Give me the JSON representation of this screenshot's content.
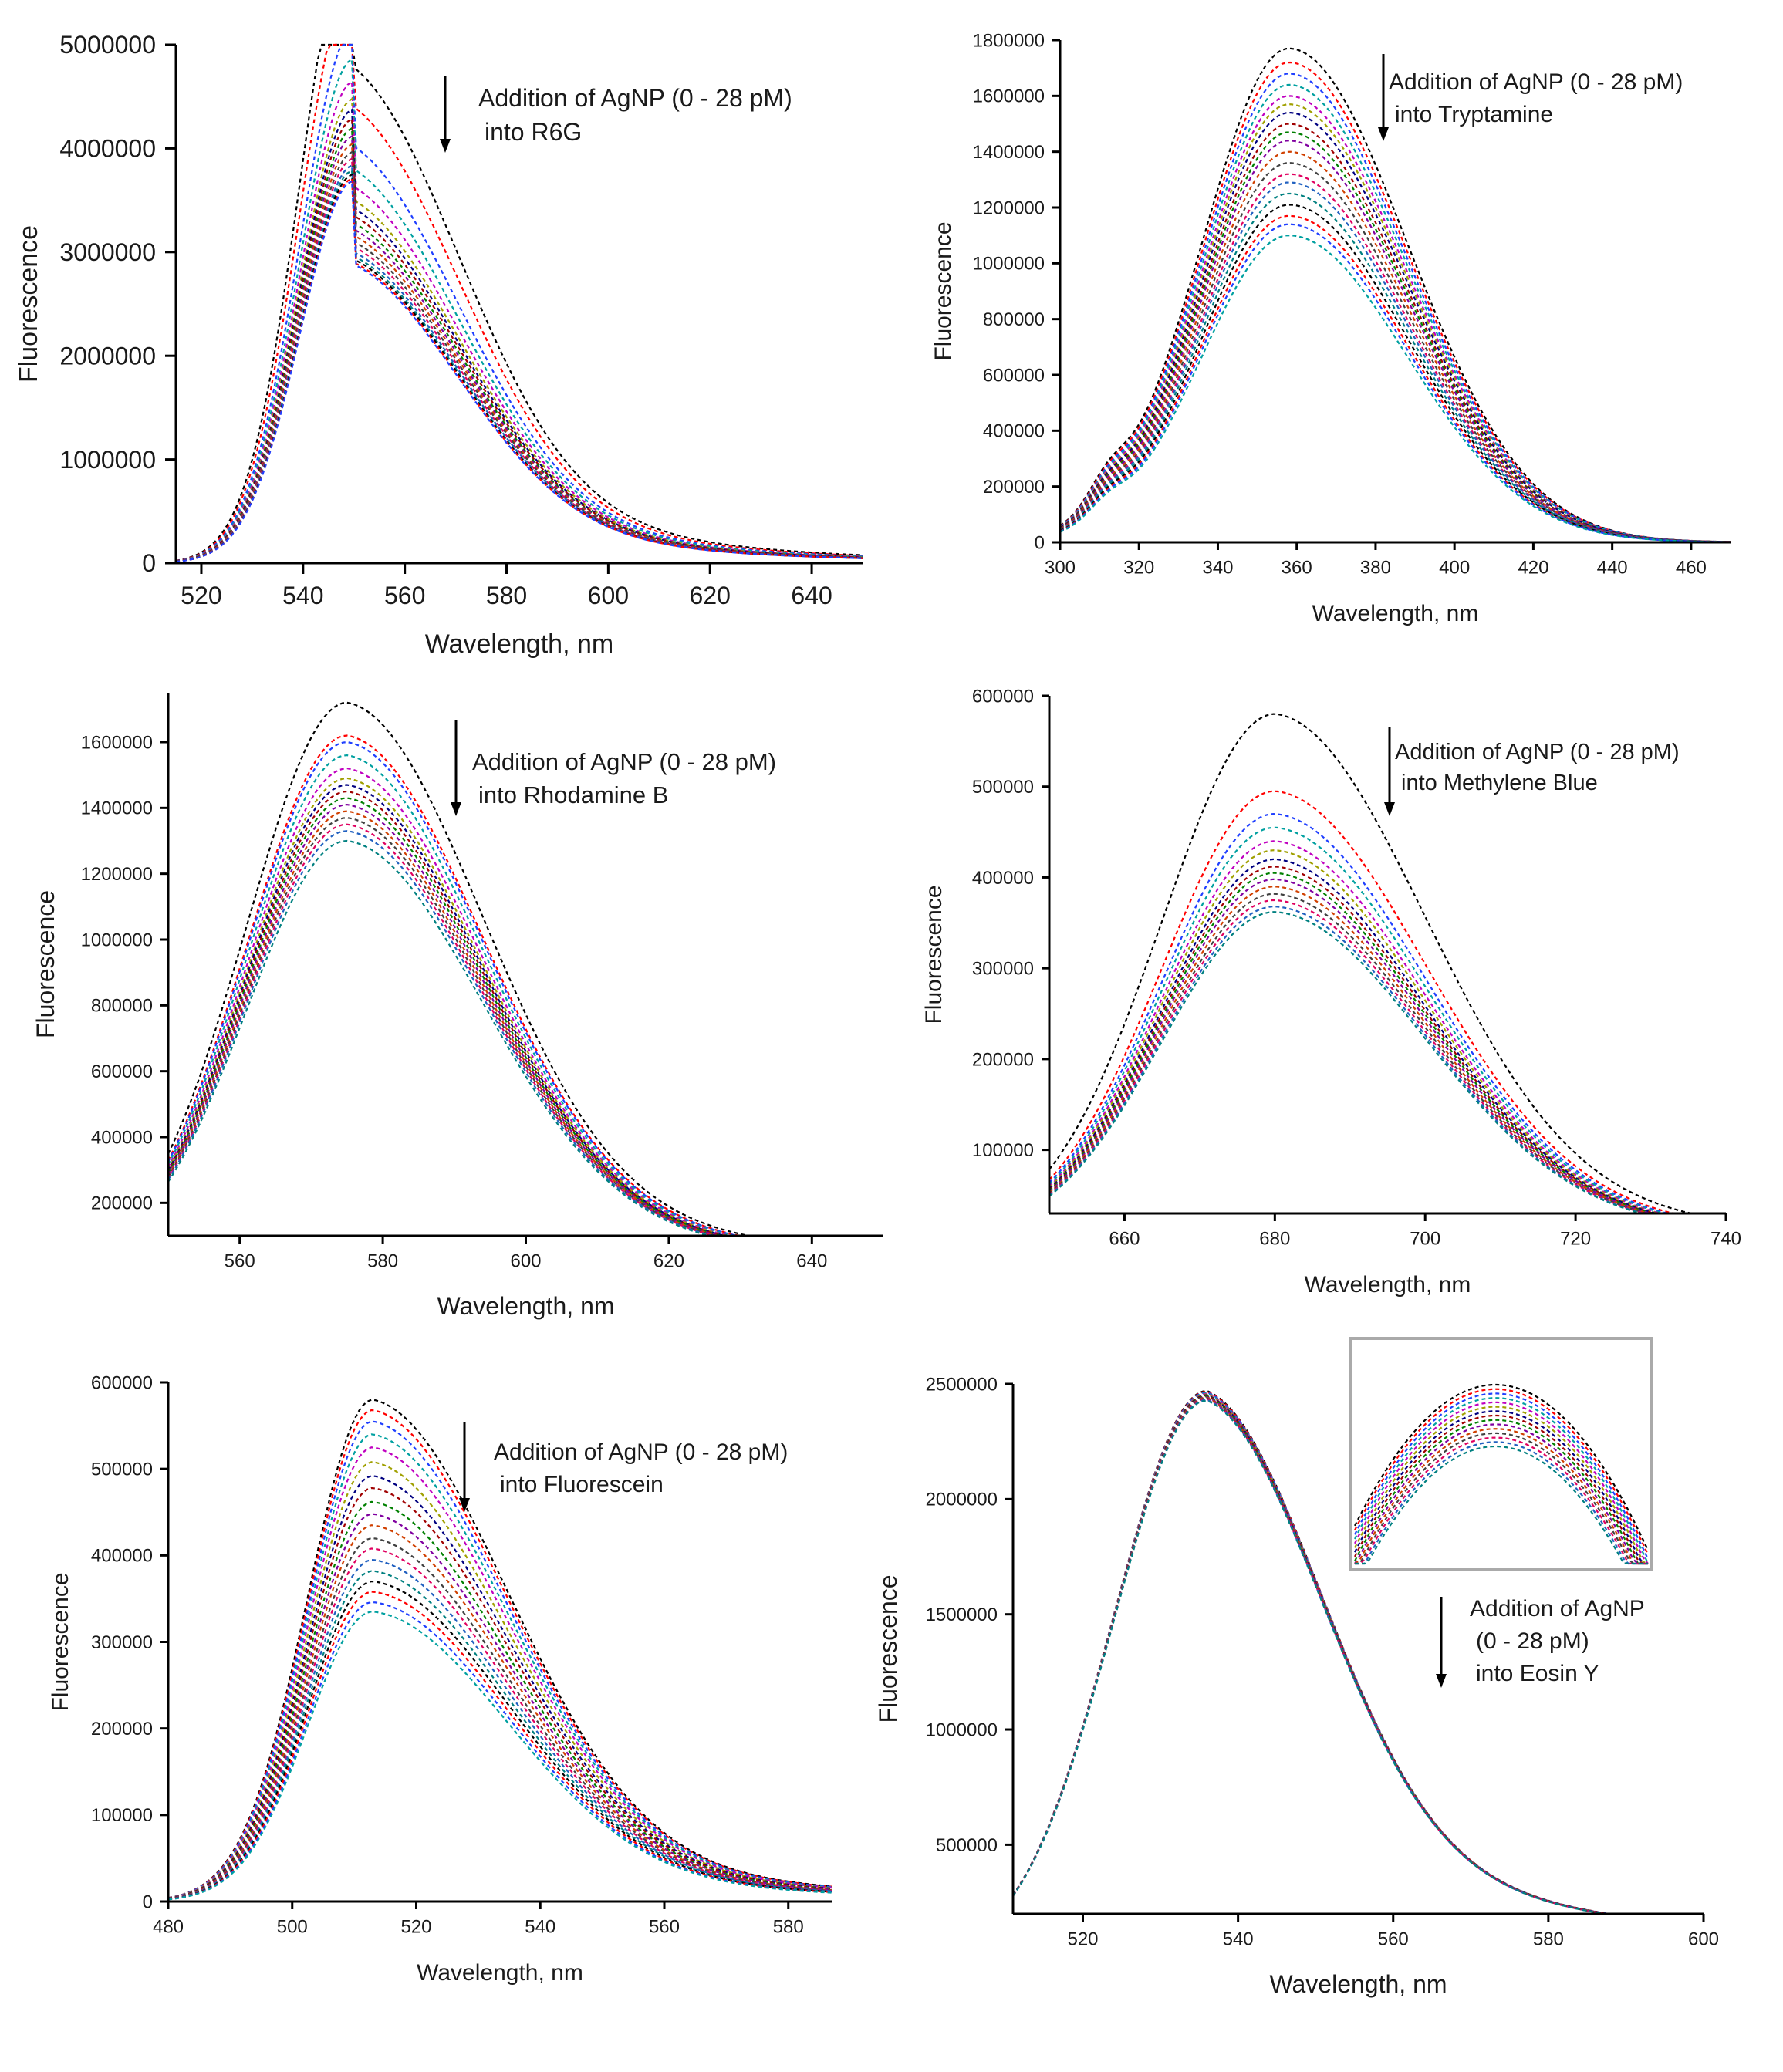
{
  "figure": {
    "series_colors": [
      "#000000",
      "#ff0000",
      "#1f3fff",
      "#00a0a0",
      "#c000c0",
      "#a0a000",
      "#000080",
      "#a00000",
      "#008000",
      "#8000a0",
      "#d04000",
      "#404040",
      "#e00060",
      "#2060c0",
      "#008080"
    ]
  },
  "chart_data": [
    {
      "id": "r6g",
      "type": "line",
      "title": "",
      "xlabel": "Wavelength, nm",
      "ylabel": "Fluorescence",
      "xlim": [
        515,
        650
      ],
      "ylim": [
        0,
        5000000
      ],
      "xticks": [
        520,
        540,
        560,
        580,
        600,
        620,
        640
      ],
      "yticks": [
        0,
        1000000,
        2000000,
        3000000,
        4000000,
        5000000
      ],
      "peak_wavelength": 550,
      "series_peak_values": [
        4780000,
        4400000,
        4020000,
        3800000,
        3630000,
        3500000,
        3420000,
        3350000,
        3280000,
        3220000,
        3160000,
        3100000,
        3050000,
        3000000,
        2960000,
        2930000,
        2900000,
        2880000
      ],
      "annotation": {
        "line1": "Addition of AgNP (0 - 28 pM)",
        "line2": "into R6G",
        "arrow": "down"
      }
    },
    {
      "id": "tryptamine",
      "type": "line",
      "title": "",
      "xlabel": "Wavelength, nm",
      "ylabel": "Fluorescence",
      "xlim": [
        300,
        470
      ],
      "ylim": [
        0,
        1800000
      ],
      "xticks": [
        300,
        320,
        340,
        360,
        380,
        400,
        420,
        440,
        460
      ],
      "yticks": [
        0,
        200000,
        400000,
        600000,
        800000,
        1000000,
        1200000,
        1400000,
        1600000,
        1800000
      ],
      "peak_wavelength": 358,
      "series_peak_values": [
        1770000,
        1720000,
        1680000,
        1640000,
        1600000,
        1570000,
        1540000,
        1500000,
        1470000,
        1440000,
        1400000,
        1360000,
        1320000,
        1290000,
        1250000,
        1210000,
        1170000,
        1140000,
        1100000
      ],
      "annotation": {
        "line1": "Addition of AgNP (0 - 28 pM)",
        "line2": "into Tryptamine",
        "arrow": "down"
      }
    },
    {
      "id": "rhodamine-b",
      "type": "line",
      "title": "",
      "xlabel": "Wavelength, nm",
      "ylabel": "Fluorescence",
      "xlim": [
        550,
        650
      ],
      "ylim": [
        100000,
        1750000
      ],
      "xticks": [
        560,
        580,
        600,
        620,
        640
      ],
      "yticks": [
        200000,
        400000,
        600000,
        800000,
        1000000,
        1200000,
        1400000,
        1600000
      ],
      "peak_wavelength": 575,
      "series_peak_values": [
        1720000,
        1620000,
        1600000,
        1560000,
        1520000,
        1490000,
        1470000,
        1450000,
        1430000,
        1410000,
        1390000,
        1370000,
        1350000,
        1330000,
        1300000
      ],
      "annotation": {
        "line1": "Addition of AgNP (0 - 28 pM)",
        "line2": "into Rhodamine B",
        "arrow": "down"
      }
    },
    {
      "id": "methylene-blue",
      "type": "line",
      "title": "",
      "xlabel": "Wavelength, nm",
      "ylabel": "Fluorescence",
      "xlim": [
        650,
        740
      ],
      "ylim": [
        30000,
        600000
      ],
      "xticks": [
        660,
        680,
        700,
        720,
        740
      ],
      "yticks": [
        100000,
        200000,
        300000,
        400000,
        500000,
        600000
      ],
      "peak_wavelength": 680,
      "series_peak_values": [
        580000,
        495000,
        470000,
        455000,
        440000,
        430000,
        420000,
        412000,
        405000,
        398000,
        390000,
        382000,
        375000,
        368000,
        362000
      ],
      "annotation": {
        "line1": "Addition of AgNP (0 - 28 pM)",
        "line2": "into Methylene Blue",
        "arrow": "down"
      }
    },
    {
      "id": "fluorescein",
      "type": "line",
      "title": "",
      "xlabel": "Wavelength, nm",
      "ylabel": "Fluorescence",
      "xlim": [
        480,
        587
      ],
      "ylim": [
        0,
        600000
      ],
      "xticks": [
        480,
        500,
        520,
        540,
        560,
        580
      ],
      "yticks": [
        0,
        100000,
        200000,
        300000,
        400000,
        500000,
        600000
      ],
      "peak_wavelength": 513,
      "series_peak_values": [
        580000,
        568000,
        555000,
        540000,
        525000,
        508000,
        492000,
        478000,
        462000,
        448000,
        435000,
        420000,
        408000,
        395000,
        382000,
        370000,
        358000,
        346000,
        335000
      ],
      "annotation": {
        "line1": "Addition of AgNP (0 - 28 pM)",
        "line2": "into Fluorescein",
        "arrow": "down"
      }
    },
    {
      "id": "eosin-y",
      "type": "line",
      "title": "",
      "xlabel": "Wavelength, nm",
      "ylabel": "Fluorescence",
      "xlim": [
        511,
        600
      ],
      "ylim": [
        200000,
        2500000
      ],
      "xticks": [
        520,
        540,
        560,
        580,
        600
      ],
      "yticks": [
        500000,
        1000000,
        1500000,
        2000000,
        2500000
      ],
      "peak_wavelength": 536,
      "series_peak_values": [
        2470000,
        2467000,
        2464000,
        2461000,
        2458000,
        2455000,
        2452000,
        2449000,
        2446000,
        2443000,
        2440000,
        2437000,
        2434000,
        2431000,
        2428000
      ],
      "annotation": {
        "line1": "Addition of AgNP",
        "line2": "(0 - 28 pM)",
        "line3": "into Eosin Y",
        "arrow": "down"
      },
      "inset": {
        "description": "zoom on peak region showing slight decrease"
      }
    }
  ]
}
